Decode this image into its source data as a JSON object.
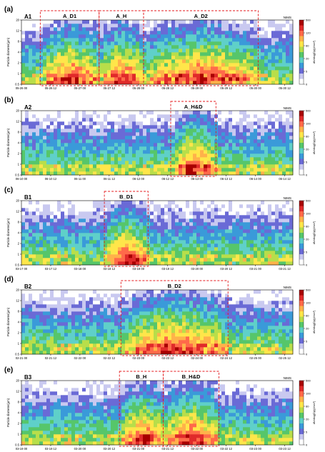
{
  "colorbar": {
    "label": "dN/dlog(Dp)(#/cm³)",
    "ticks": [
      "0",
      "5",
      "20",
      "60",
      "100",
      "500"
    ],
    "colors": [
      "#ffffff",
      "#c9c9f0",
      "#6a6ad6",
      "#3a9ad9",
      "#5fd0c9",
      "#56c66a",
      "#b8de4a",
      "#ffe64a",
      "#ffb24a",
      "#ff6a4a",
      "#e02a2a",
      "#a80000"
    ]
  },
  "chart_data": [
    {
      "type": "heatmap",
      "panel": "(a)",
      "tag": "A1",
      "instrument": "NIMS",
      "ylabel": "Particle diameter(μm)",
      "yticks": [
        "0.5",
        "1",
        "2",
        "4",
        "8",
        "12",
        "20"
      ],
      "xticks": [
        "05-26 00",
        "05-26 12",
        "05-27 00",
        "05-27 12",
        "05-28 00",
        "05-28 12",
        "05-29 00",
        "05-29 12",
        "05-30 00",
        "05-30 12"
      ],
      "events": [
        {
          "label": "A_D1",
          "start": 1.25,
          "end": 5.15
        },
        {
          "label": "A_H",
          "start": 5.15,
          "end": 8.1
        },
        {
          "label": "A_D2",
          "start": 8.1,
          "end": 15.7
        }
      ],
      "colorbar_ticks": [
        "0",
        "5",
        "20",
        "60",
        "120",
        "500"
      ]
    },
    {
      "type": "heatmap",
      "panel": "(b)",
      "tag": "A2",
      "instrument": "NIMS",
      "ylabel": "Particle diameter(μm)",
      "yticks": [
        "0.5",
        "1",
        "2",
        "4",
        "8",
        "12",
        "20"
      ],
      "xticks": [
        "06-10 00",
        "06-10 12",
        "06-11 00",
        "06-11 12",
        "06-12 00",
        "06-12 12",
        "06-13 00",
        "06-13 12",
        "06-14 00",
        "06-14 12"
      ],
      "events": [
        {
          "label": "A_H&D",
          "start": 9.9,
          "end": 12.9
        }
      ],
      "colorbar_ticks": [
        "0",
        "5",
        "20",
        "60",
        "100",
        "500"
      ]
    },
    {
      "type": "heatmap",
      "panel": "(c)",
      "tag": "B1",
      "instrument": "NIMS",
      "ylabel": "Particle diameter(μm)",
      "yticks": [
        "0.5",
        "1",
        "2",
        "4",
        "8",
        "12",
        "20"
      ],
      "xticks": [
        "03-17 00",
        "03-17 12",
        "03-18 00",
        "03-18 12",
        "03-19 00",
        "03-19 12",
        "03-20 00",
        "03-20 12",
        "03-21 00",
        "03-21 12"
      ],
      "events": [
        {
          "label": "B_D1",
          "start": 5.5,
          "end": 8.4
        }
      ],
      "colorbar_ticks": [
        "0",
        "5",
        "20",
        "60",
        "100",
        "500"
      ]
    },
    {
      "type": "heatmap",
      "panel": "(d)",
      "tag": "B2",
      "instrument": "NIMS",
      "ylabel": "Particle diameter(μm)",
      "yticks": [
        "0.5",
        "1",
        "2",
        "4",
        "8",
        "12",
        "20"
      ],
      "xticks": [
        "02-21 00",
        "02-21 12",
        "02-22 00",
        "02-22 12",
        "02-23 00",
        "02-23 12",
        "02-24 00",
        "02-24 12",
        "02-25 00",
        "02-25 12"
      ],
      "events": [
        {
          "label": "B_D2",
          "start": 6.6,
          "end": 13.7
        }
      ],
      "colorbar_ticks": [
        "0",
        "5",
        "20",
        "60",
        "100",
        "500"
      ]
    },
    {
      "type": "heatmap",
      "panel": "(e)",
      "tag": "B3",
      "instrument": "NIMS",
      "ylabel": "Particle diameter(μm)",
      "yticks": [
        "0.5",
        "1",
        "2",
        "4",
        "8",
        "12",
        "20"
      ],
      "xticks": [
        "03-19 00",
        "03-19 12",
        "03-20 00",
        "03-20 12",
        "03-21 00",
        "03-21 12",
        "03-22 00",
        "03-22 12",
        "03-23 00",
        "03-23 12"
      ],
      "events": [
        {
          "label": "B_H",
          "start": 6.5,
          "end": 9.4
        },
        {
          "label": "B_H&D",
          "start": 9.4,
          "end": 13.1
        }
      ],
      "colorbar_ticks": [
        "0",
        "5",
        "20",
        "60",
        "100",
        "500"
      ]
    }
  ]
}
